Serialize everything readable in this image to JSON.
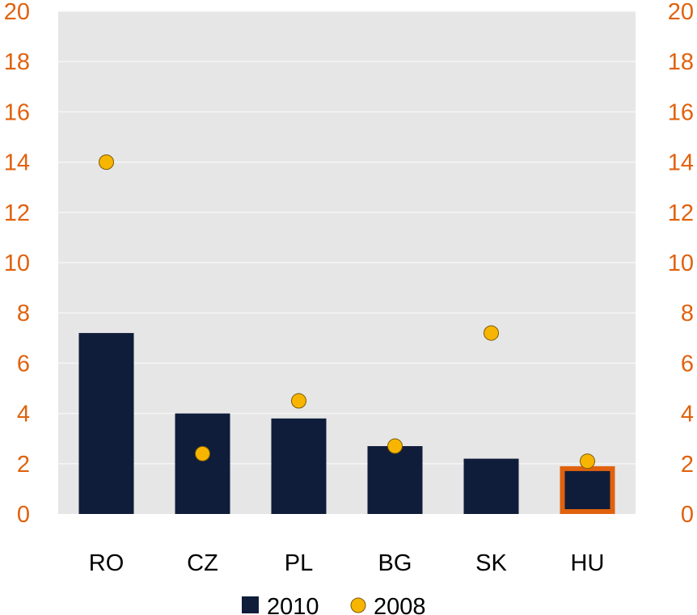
{
  "chart_data": {
    "type": "bar",
    "categories": [
      "RO",
      "CZ",
      "PL",
      "BG",
      "SK",
      "HU"
    ],
    "series": [
      {
        "name": "2010",
        "kind": "bar",
        "values": [
          7.2,
          4.0,
          3.8,
          2.7,
          2.2,
          1.9
        ]
      },
      {
        "name": "2008",
        "kind": "scatter",
        "values": [
          14.0,
          2.4,
          4.5,
          2.7,
          7.2,
          2.1
        ]
      }
    ],
    "ylim": [
      0,
      20
    ],
    "yticks": [
      "0",
      "2",
      "4",
      "6",
      "8",
      "10",
      "12",
      "14",
      "16",
      "18",
      "20"
    ],
    "secondary_yticks": [
      "0",
      "2",
      "4",
      "6",
      "8",
      "10",
      "12",
      "14",
      "16",
      "18",
      "20"
    ],
    "highlight_category": "HU",
    "grid": true,
    "legend": {
      "position": "bottom",
      "items": [
        "2010",
        "2008"
      ]
    },
    "colors": {
      "bar": "#0f1d3b",
      "marker": "#f7b500",
      "marker_edge": "#7a5a00",
      "axis_text": "#e0620e",
      "highlight": "#e0620e",
      "plot_bg": "#e6e6e6",
      "grid": "#f5f5f5"
    }
  }
}
